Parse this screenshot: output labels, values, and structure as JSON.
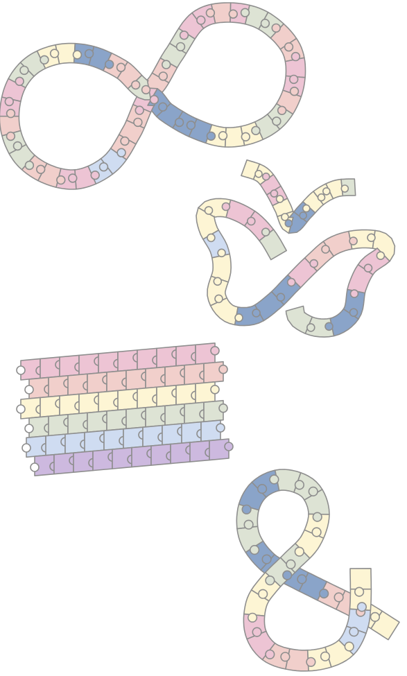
{
  "palette": {
    "pink": "#edc4d4",
    "rose": "#f1cfcb",
    "sage": "#dde3d4",
    "cream": "#fdf5d4",
    "blue": "#8aa4c9",
    "pale_blue": "#cfdcf1",
    "lavender": "#cdb9df",
    "outline": "#8e8e8e"
  },
  "shapes": [
    {
      "id": "infinity-strip",
      "tiles": [
        "rose",
        "rose",
        "sage",
        "sage",
        "pink",
        "pink",
        "rose",
        "pink",
        "sage",
        "sage",
        "rose",
        "rose",
        "pink",
        "pink",
        "rose",
        "sage",
        "sage",
        "cream",
        "cream",
        "cream",
        "blue",
        "blue",
        "blue",
        "blue",
        "pink",
        "rose",
        "rose",
        "rose",
        "pale_blue",
        "pale_blue",
        "pink",
        "pink",
        "rose",
        "rose",
        "sage",
        "sage",
        "rose",
        "pink",
        "pink",
        "sage",
        "sage",
        "cream",
        "cream",
        "blue",
        "blue",
        "rose",
        "rose",
        "sage"
      ]
    },
    {
      "id": "bird-strip",
      "tiles": [
        "cream",
        "cream",
        "pink",
        "pink",
        "cream",
        "cream",
        "blue",
        "blue",
        "cream",
        "cream",
        "cream",
        "sage",
        "sage",
        "pink",
        "pink",
        "cream",
        "cream",
        "pale_blue",
        "cream",
        "cream",
        "cream",
        "blue",
        "blue",
        "blue",
        "pink",
        "rose",
        "rose",
        "cream",
        "cream",
        "pink",
        "pink",
        "blue",
        "blue",
        "sage",
        "sage"
      ]
    },
    {
      "id": "stacked-rows",
      "rows": [
        [
          "pink",
          "pink",
          "pink",
          "pink",
          "pink",
          "pink",
          "pink",
          "pink",
          "pink",
          "pink"
        ],
        [
          "rose",
          "rose",
          "rose",
          "rose",
          "rose",
          "rose",
          "rose",
          "rose",
          "rose",
          "rose"
        ],
        [
          "cream",
          "cream",
          "cream",
          "cream",
          "cream",
          "cream",
          "cream",
          "cream",
          "cream",
          "cream"
        ],
        [
          "sage",
          "sage",
          "sage",
          "sage",
          "sage",
          "sage",
          "sage",
          "sage",
          "sage",
          "sage"
        ],
        [
          "pale_blue",
          "pale_blue",
          "pale_blue",
          "pale_blue",
          "pale_blue",
          "pale_blue",
          "pale_blue",
          "pale_blue",
          "pale_blue",
          "pale_blue"
        ],
        [
          "lavender",
          "lavender",
          "lavender",
          "lavender",
          "lavender",
          "lavender",
          "lavender",
          "lavender",
          "lavender",
          "lavender"
        ]
      ]
    },
    {
      "id": "ampersand-strip",
      "tiles": [
        "cream",
        "cream",
        "rose",
        "rose",
        "blue",
        "blue",
        "blue",
        "blue",
        "sage",
        "sage",
        "blue",
        "blue",
        "sage",
        "sage",
        "sage",
        "cream",
        "cream",
        "sage",
        "sage",
        "cream",
        "cream",
        "pink",
        "pink",
        "rose",
        "rose",
        "cream",
        "cream",
        "pale_blue",
        "pale_blue",
        "cream",
        "cream"
      ]
    }
  ]
}
